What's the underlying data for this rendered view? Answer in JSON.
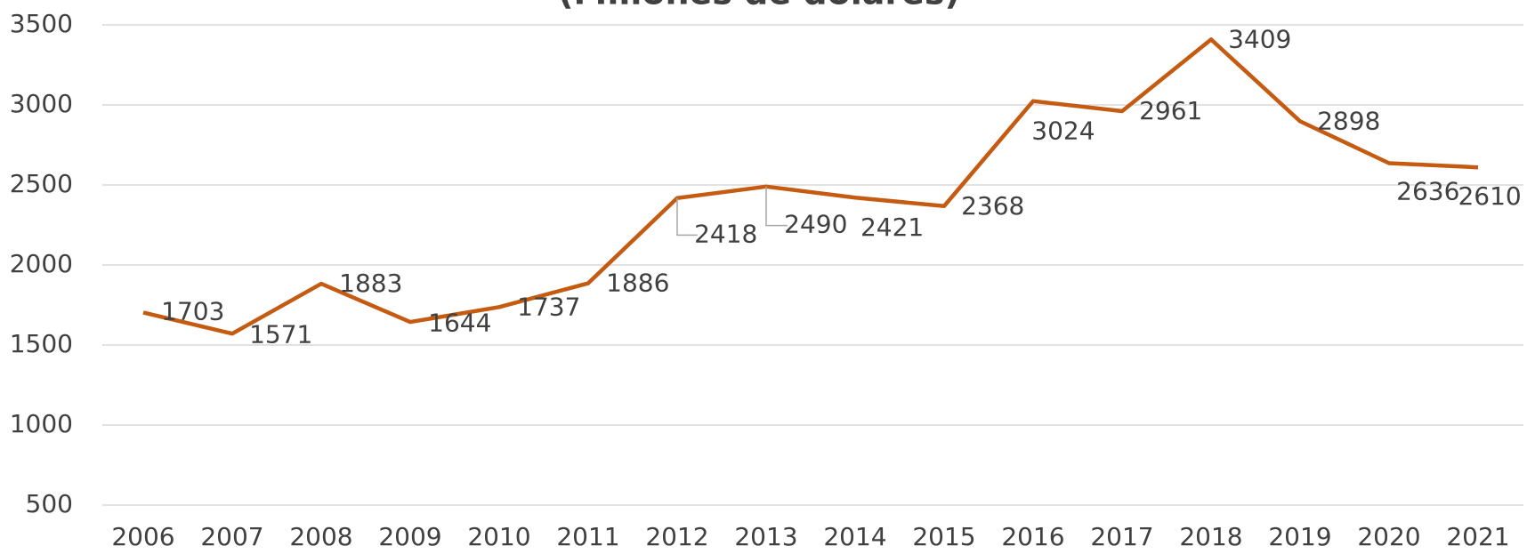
{
  "chart_data": {
    "type": "line",
    "title": "(Millones de dólares)",
    "categories": [
      "2006",
      "2007",
      "2008",
      "2009",
      "2010",
      "2011",
      "2012",
      "2013",
      "2014",
      "2015",
      "2016",
      "2017",
      "2018",
      "2019",
      "2020",
      "2021"
    ],
    "series": [
      {
        "name": "Millones de dólares",
        "color": "#c55a11",
        "values": [
          1703,
          1571,
          1883,
          1644,
          1737,
          1886,
          2418,
          2490,
          2421,
          2368,
          3024,
          2961,
          3409,
          2898,
          2636,
          2610
        ]
      }
    ],
    "ylim": [
      500,
      3500
    ],
    "yticks": [
      500,
      1000,
      1500,
      2000,
      2500,
      3000,
      3500
    ],
    "grid": true
  }
}
